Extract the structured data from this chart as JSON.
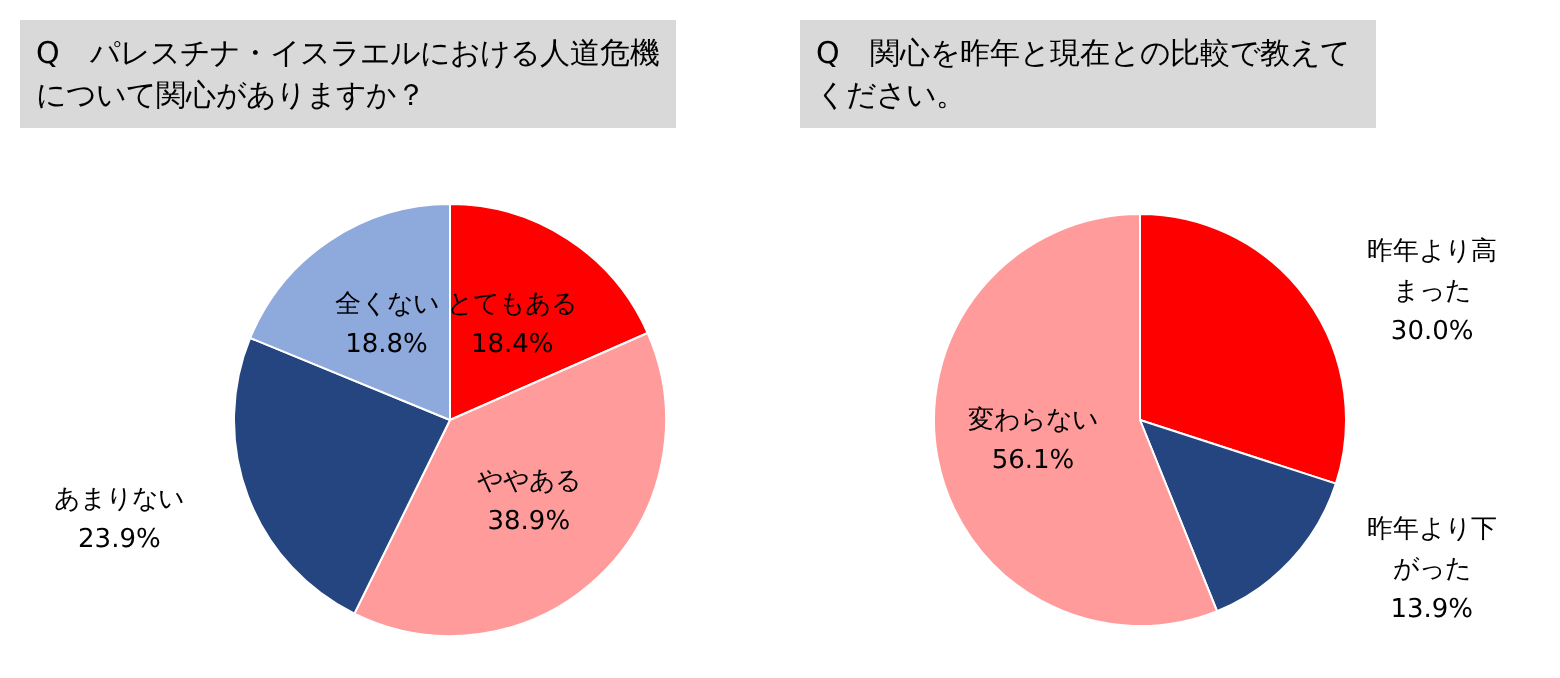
{
  "chart_data": [
    {
      "type": "pie",
      "title": "Q　パレスチナ・イスラエルにおける人道危機について関心がありますか？",
      "categories": [
        "とてもある",
        "ややある",
        "あまりない",
        "全くない"
      ],
      "values": [
        18.4,
        38.9,
        23.9,
        18.8
      ],
      "colors": [
        "#ff0000",
        "#ff9b9b",
        "#254580",
        "#8ea9db"
      ],
      "value_labels": [
        "18.4%",
        "38.9%",
        "23.9%",
        "18.8%"
      ],
      "legend": false
    },
    {
      "type": "pie",
      "title": "Q　関心を昨年と現在との比較で教えてください。",
      "categories": [
        "昨年より高まった",
        "昨年より下がった",
        "変わらない"
      ],
      "values": [
        30.0,
        13.9,
        56.1
      ],
      "colors": [
        "#ff0000",
        "#254580",
        "#ff9b9b"
      ],
      "value_labels": [
        "30.0%",
        "13.9%",
        "56.1%"
      ],
      "legend": false
    }
  ]
}
